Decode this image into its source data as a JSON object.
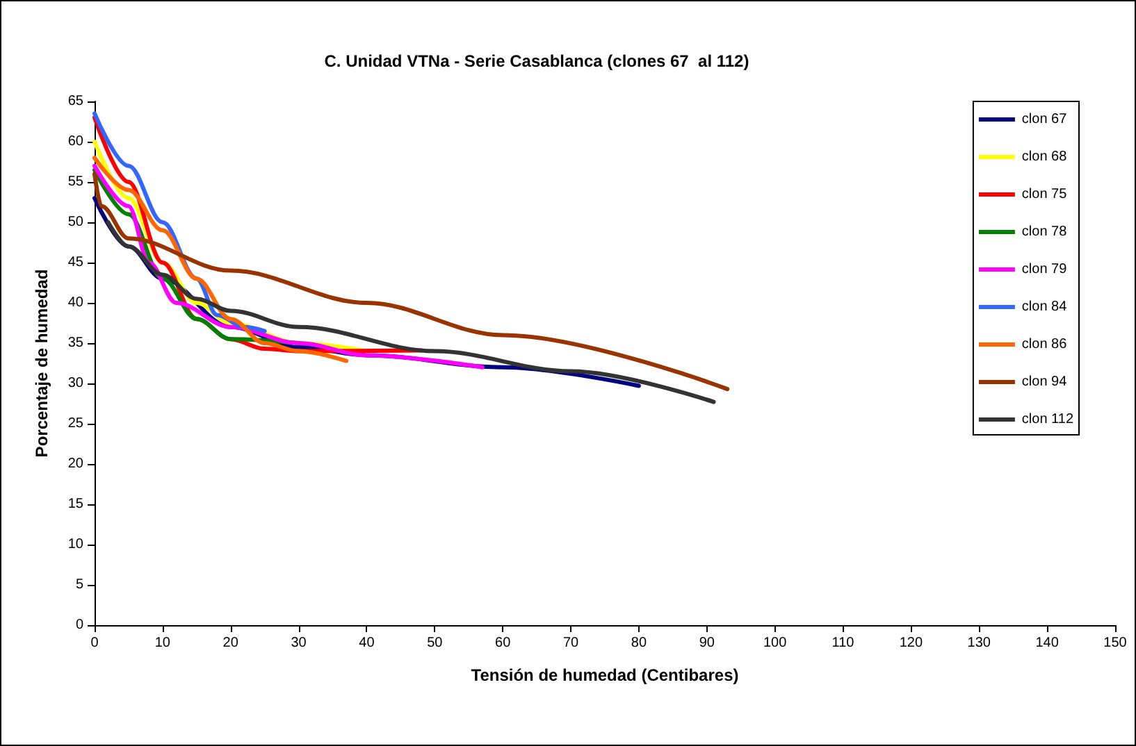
{
  "chart_data": {
    "type": "line",
    "title": "C. Unidad VTNa - Serie Casablanca (clones 67  al 112)",
    "xlabel": "Tensión de humedad (Centibares)",
    "ylabel": "Porcentaje de humedad",
    "xlim": [
      0,
      150
    ],
    "xticks": [
      0,
      10,
      20,
      30,
      40,
      50,
      60,
      70,
      80,
      90,
      100,
      110,
      120,
      130,
      140,
      150
    ],
    "ylim": [
      0,
      65
    ],
    "yticks": [
      0,
      5,
      10,
      15,
      20,
      25,
      30,
      35,
      40,
      45,
      50,
      55,
      60,
      65
    ],
    "grid": false,
    "legend": "top right",
    "marker": "none",
    "line_style": "solid",
    "series": [
      {
        "name": "clon 67",
        "color": "#000080",
        "x": [
          0,
          5,
          10,
          20,
          30,
          40,
          60,
          80
        ],
        "values": [
          53,
          47,
          43,
          37,
          34.5,
          33.5,
          32,
          29.7
        ]
      },
      {
        "name": "clon 68",
        "color": "#ffff00",
        "x": [
          0,
          5,
          10,
          15,
          20,
          30,
          40
        ],
        "values": [
          60,
          53,
          45,
          40,
          37.5,
          35,
          34
        ]
      },
      {
        "name": "clon 75",
        "color": "#ff0000",
        "x": [
          0,
          5,
          10,
          15,
          20,
          25,
          30,
          48
        ],
        "values": [
          63,
          55,
          45,
          38,
          35.5,
          34.3,
          34,
          34.1
        ]
      },
      {
        "name": "clon 78",
        "color": "#008000",
        "x": [
          0,
          5,
          10,
          15,
          20,
          30
        ],
        "values": [
          56.5,
          51,
          43,
          38,
          35.5,
          35
        ]
      },
      {
        "name": "clon 79",
        "color": "#ff00ff",
        "x": [
          0,
          5,
          8,
          12,
          20,
          30,
          40,
          57
        ],
        "values": [
          57,
          52,
          45,
          40,
          37,
          35,
          33.5,
          32
        ]
      },
      {
        "name": "clon 84",
        "color": "#3366ff",
        "x": [
          0,
          5,
          10,
          15,
          18,
          22,
          25
        ],
        "values": [
          63.5,
          57,
          50,
          43,
          38.5,
          37,
          36.5
        ]
      },
      {
        "name": "clon 86",
        "color": "#ff6600",
        "x": [
          0,
          5,
          10,
          15,
          20,
          25,
          30,
          37
        ],
        "values": [
          58,
          54,
          49,
          43,
          38,
          35,
          34,
          32.8
        ]
      },
      {
        "name": "clon 94",
        "color": "#993300",
        "x": [
          0,
          1,
          5,
          20,
          40,
          60,
          93
        ],
        "values": [
          56,
          52,
          48,
          44,
          40,
          36,
          29.3
        ]
      },
      {
        "name": "clon 112",
        "color": "#333333",
        "x": [
          2,
          5,
          10,
          15,
          20,
          30,
          50,
          70,
          91
        ],
        "values": [
          50,
          47,
          43.5,
          40.5,
          39,
          37,
          34,
          31.5,
          27.7
        ]
      }
    ]
  }
}
